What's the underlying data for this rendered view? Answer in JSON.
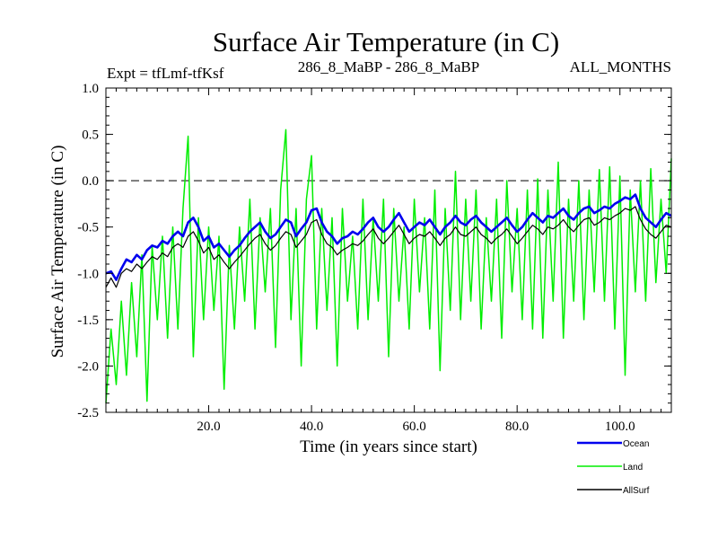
{
  "chart_data": {
    "type": "line",
    "title": "Surface Air Temperature (in C)",
    "subtitle_left": "Expt = tfLmf-tfKsf",
    "subtitle_center": "286_8_MaBP - 286_8_MaBP",
    "subtitle_right": "ALL_MONTHS",
    "xlabel": "Time (in years since start)",
    "ylabel": "Surface Air Temperature (in C)",
    "xlim": [
      0,
      110
    ],
    "ylim": [
      -2.5,
      1.0
    ],
    "x_ticks": [
      20,
      40,
      60,
      80,
      100
    ],
    "x_tick_labels": [
      "20.0",
      "40.0",
      "60.0",
      "80.0",
      "100.0"
    ],
    "y_ticks": [
      -2.5,
      -2.0,
      -1.5,
      -1.0,
      -0.5,
      0.0,
      0.5,
      1.0
    ],
    "y_tick_labels": [
      "-2.5",
      "-2.0",
      "-1.5",
      "-1.0",
      "-0.5",
      "0.0",
      "0.5",
      "1.0"
    ],
    "reference_line": {
      "y": 0.0,
      "style": "dashed"
    },
    "legend_position": "below-right",
    "series": [
      {
        "name": "Land",
        "color": "#00ee00",
        "x": [
          0,
          1,
          2,
          3,
          4,
          5,
          6,
          7,
          8,
          9,
          10,
          11,
          12,
          13,
          14,
          15,
          16,
          17,
          18,
          19,
          20,
          21,
          22,
          23,
          24,
          25,
          26,
          27,
          28,
          29,
          30,
          31,
          32,
          33,
          34,
          35,
          36,
          37,
          38,
          39,
          40,
          41,
          42,
          43,
          44,
          45,
          46,
          47,
          48,
          49,
          50,
          51,
          52,
          53,
          54,
          55,
          56,
          57,
          58,
          59,
          60,
          61,
          62,
          63,
          64,
          65,
          66,
          67,
          68,
          69,
          70,
          71,
          72,
          73,
          74,
          75,
          76,
          77,
          78,
          79,
          80,
          81,
          82,
          83,
          84,
          85,
          86,
          87,
          88,
          89,
          90,
          91,
          92,
          93,
          94,
          95,
          96,
          97,
          98,
          99,
          100,
          101,
          102,
          103,
          104,
          105,
          106,
          107,
          108,
          109,
          110
        ],
        "values": [
          -2.4,
          -1.6,
          -2.2,
          -1.3,
          -2.1,
          -1.1,
          -1.9,
          -0.8,
          -2.38,
          -0.7,
          -1.5,
          -0.6,
          -1.7,
          -0.5,
          -1.6,
          -0.3,
          0.48,
          -1.9,
          -0.4,
          -1.5,
          -0.5,
          -1.4,
          -0.6,
          -2.25,
          -0.7,
          -1.6,
          -0.5,
          -1.3,
          -0.2,
          -1.6,
          -0.4,
          -1.2,
          -0.3,
          -1.8,
          -0.1,
          0.55,
          -1.5,
          -0.3,
          -2.0,
          -0.2,
          0.27,
          -1.6,
          -0.3,
          -1.4,
          -0.4,
          -2.0,
          -0.3,
          -1.3,
          -0.6,
          -1.6,
          -0.2,
          -1.5,
          -0.4,
          -1.3,
          -0.2,
          -1.9,
          -0.3,
          -1.3,
          -0.5,
          -1.6,
          -0.2,
          -1.2,
          -0.4,
          -1.6,
          -0.1,
          -2.05,
          -0.3,
          -1.4,
          0.1,
          -1.5,
          -0.2,
          -1.3,
          -0.1,
          -1.6,
          -0.4,
          -1.3,
          -0.2,
          -1.7,
          0.0,
          -1.2,
          -0.3,
          -1.5,
          -0.1,
          -1.6,
          0.02,
          -1.7,
          -0.1,
          -1.3,
          0.2,
          -1.7,
          -0.2,
          -1.3,
          0.0,
          -1.5,
          -0.1,
          -1.2,
          0.12,
          -1.3,
          0.15,
          -1.6,
          0.05,
          -2.1,
          -0.1,
          -1.2,
          0.0,
          -1.3,
          0.13,
          -1.1,
          -0.2,
          -1.0,
          0.24
        ]
      },
      {
        "name": "Ocean",
        "color": "#0000ee",
        "x": [
          0,
          1,
          2,
          3,
          4,
          5,
          6,
          7,
          8,
          9,
          10,
          11,
          12,
          13,
          14,
          15,
          16,
          17,
          18,
          19,
          20,
          21,
          22,
          23,
          24,
          25,
          26,
          27,
          28,
          29,
          30,
          31,
          32,
          33,
          34,
          35,
          36,
          37,
          38,
          39,
          40,
          41,
          42,
          43,
          44,
          45,
          46,
          47,
          48,
          49,
          50,
          51,
          52,
          53,
          54,
          55,
          56,
          57,
          58,
          59,
          60,
          61,
          62,
          63,
          64,
          65,
          66,
          67,
          68,
          69,
          70,
          71,
          72,
          73,
          74,
          75,
          76,
          77,
          78,
          79,
          80,
          81,
          82,
          83,
          84,
          85,
          86,
          87,
          88,
          89,
          90,
          91,
          92,
          93,
          94,
          95,
          96,
          97,
          98,
          99,
          100,
          101,
          102,
          103,
          104,
          105,
          106,
          107,
          108,
          109,
          110
        ],
        "values": [
          -1.0,
          -0.98,
          -1.07,
          -0.95,
          -0.85,
          -0.88,
          -0.8,
          -0.85,
          -0.75,
          -0.7,
          -0.72,
          -0.65,
          -0.68,
          -0.6,
          -0.55,
          -0.6,
          -0.45,
          -0.4,
          -0.5,
          -0.65,
          -0.6,
          -0.72,
          -0.68,
          -0.75,
          -0.82,
          -0.75,
          -0.7,
          -0.62,
          -0.55,
          -0.5,
          -0.45,
          -0.55,
          -0.62,
          -0.58,
          -0.5,
          -0.42,
          -0.45,
          -0.6,
          -0.52,
          -0.45,
          -0.32,
          -0.3,
          -0.45,
          -0.55,
          -0.6,
          -0.68,
          -0.62,
          -0.6,
          -0.55,
          -0.58,
          -0.52,
          -0.45,
          -0.4,
          -0.5,
          -0.55,
          -0.5,
          -0.42,
          -0.35,
          -0.45,
          -0.55,
          -0.5,
          -0.45,
          -0.48,
          -0.42,
          -0.5,
          -0.58,
          -0.5,
          -0.45,
          -0.38,
          -0.45,
          -0.48,
          -0.42,
          -0.38,
          -0.45,
          -0.5,
          -0.55,
          -0.5,
          -0.45,
          -0.4,
          -0.48,
          -0.55,
          -0.5,
          -0.42,
          -0.35,
          -0.4,
          -0.45,
          -0.38,
          -0.4,
          -0.35,
          -0.3,
          -0.38,
          -0.42,
          -0.35,
          -0.3,
          -0.28,
          -0.35,
          -0.32,
          -0.28,
          -0.3,
          -0.25,
          -0.22,
          -0.18,
          -0.2,
          -0.15,
          -0.3,
          -0.4,
          -0.45,
          -0.5,
          -0.42,
          -0.35,
          -0.38
        ]
      },
      {
        "name": "AllSurf",
        "color": "#000000",
        "x": [
          0,
          1,
          2,
          3,
          4,
          5,
          6,
          7,
          8,
          9,
          10,
          11,
          12,
          13,
          14,
          15,
          16,
          17,
          18,
          19,
          20,
          21,
          22,
          23,
          24,
          25,
          26,
          27,
          28,
          29,
          30,
          31,
          32,
          33,
          34,
          35,
          36,
          37,
          38,
          39,
          40,
          41,
          42,
          43,
          44,
          45,
          46,
          47,
          48,
          49,
          50,
          51,
          52,
          53,
          54,
          55,
          56,
          57,
          58,
          59,
          60,
          61,
          62,
          63,
          64,
          65,
          66,
          67,
          68,
          69,
          70,
          71,
          72,
          73,
          74,
          75,
          76,
          77,
          78,
          79,
          80,
          81,
          82,
          83,
          84,
          85,
          86,
          87,
          88,
          89,
          90,
          91,
          92,
          93,
          94,
          95,
          96,
          97,
          98,
          99,
          100,
          101,
          102,
          103,
          104,
          105,
          106,
          107,
          108,
          109,
          110
        ],
        "values": [
          -1.15,
          -1.05,
          -1.15,
          -1.0,
          -0.95,
          -0.98,
          -0.9,
          -0.95,
          -0.88,
          -0.82,
          -0.85,
          -0.78,
          -0.82,
          -0.72,
          -0.68,
          -0.72,
          -0.6,
          -0.55,
          -0.65,
          -0.78,
          -0.72,
          -0.85,
          -0.8,
          -0.88,
          -0.95,
          -0.88,
          -0.82,
          -0.75,
          -0.68,
          -0.62,
          -0.58,
          -0.68,
          -0.75,
          -0.7,
          -0.62,
          -0.55,
          -0.58,
          -0.72,
          -0.65,
          -0.58,
          -0.45,
          -0.42,
          -0.58,
          -0.68,
          -0.72,
          -0.8,
          -0.75,
          -0.72,
          -0.68,
          -0.7,
          -0.65,
          -0.58,
          -0.52,
          -0.62,
          -0.68,
          -0.62,
          -0.55,
          -0.48,
          -0.58,
          -0.68,
          -0.62,
          -0.58,
          -0.6,
          -0.55,
          -0.62,
          -0.7,
          -0.62,
          -0.58,
          -0.5,
          -0.58,
          -0.6,
          -0.55,
          -0.5,
          -0.58,
          -0.62,
          -0.68,
          -0.62,
          -0.58,
          -0.52,
          -0.6,
          -0.68,
          -0.62,
          -0.55,
          -0.48,
          -0.52,
          -0.58,
          -0.5,
          -0.52,
          -0.48,
          -0.42,
          -0.5,
          -0.55,
          -0.48,
          -0.42,
          -0.4,
          -0.48,
          -0.45,
          -0.4,
          -0.42,
          -0.38,
          -0.35,
          -0.3,
          -0.32,
          -0.28,
          -0.42,
          -0.52,
          -0.58,
          -0.62,
          -0.55,
          -0.48,
          -0.5
        ]
      }
    ],
    "legend": [
      {
        "name": "Ocean",
        "color": "#0000ee"
      },
      {
        "name": "Land",
        "color": "#00ee00"
      },
      {
        "name": "AllSurf",
        "color": "#000000"
      }
    ]
  }
}
